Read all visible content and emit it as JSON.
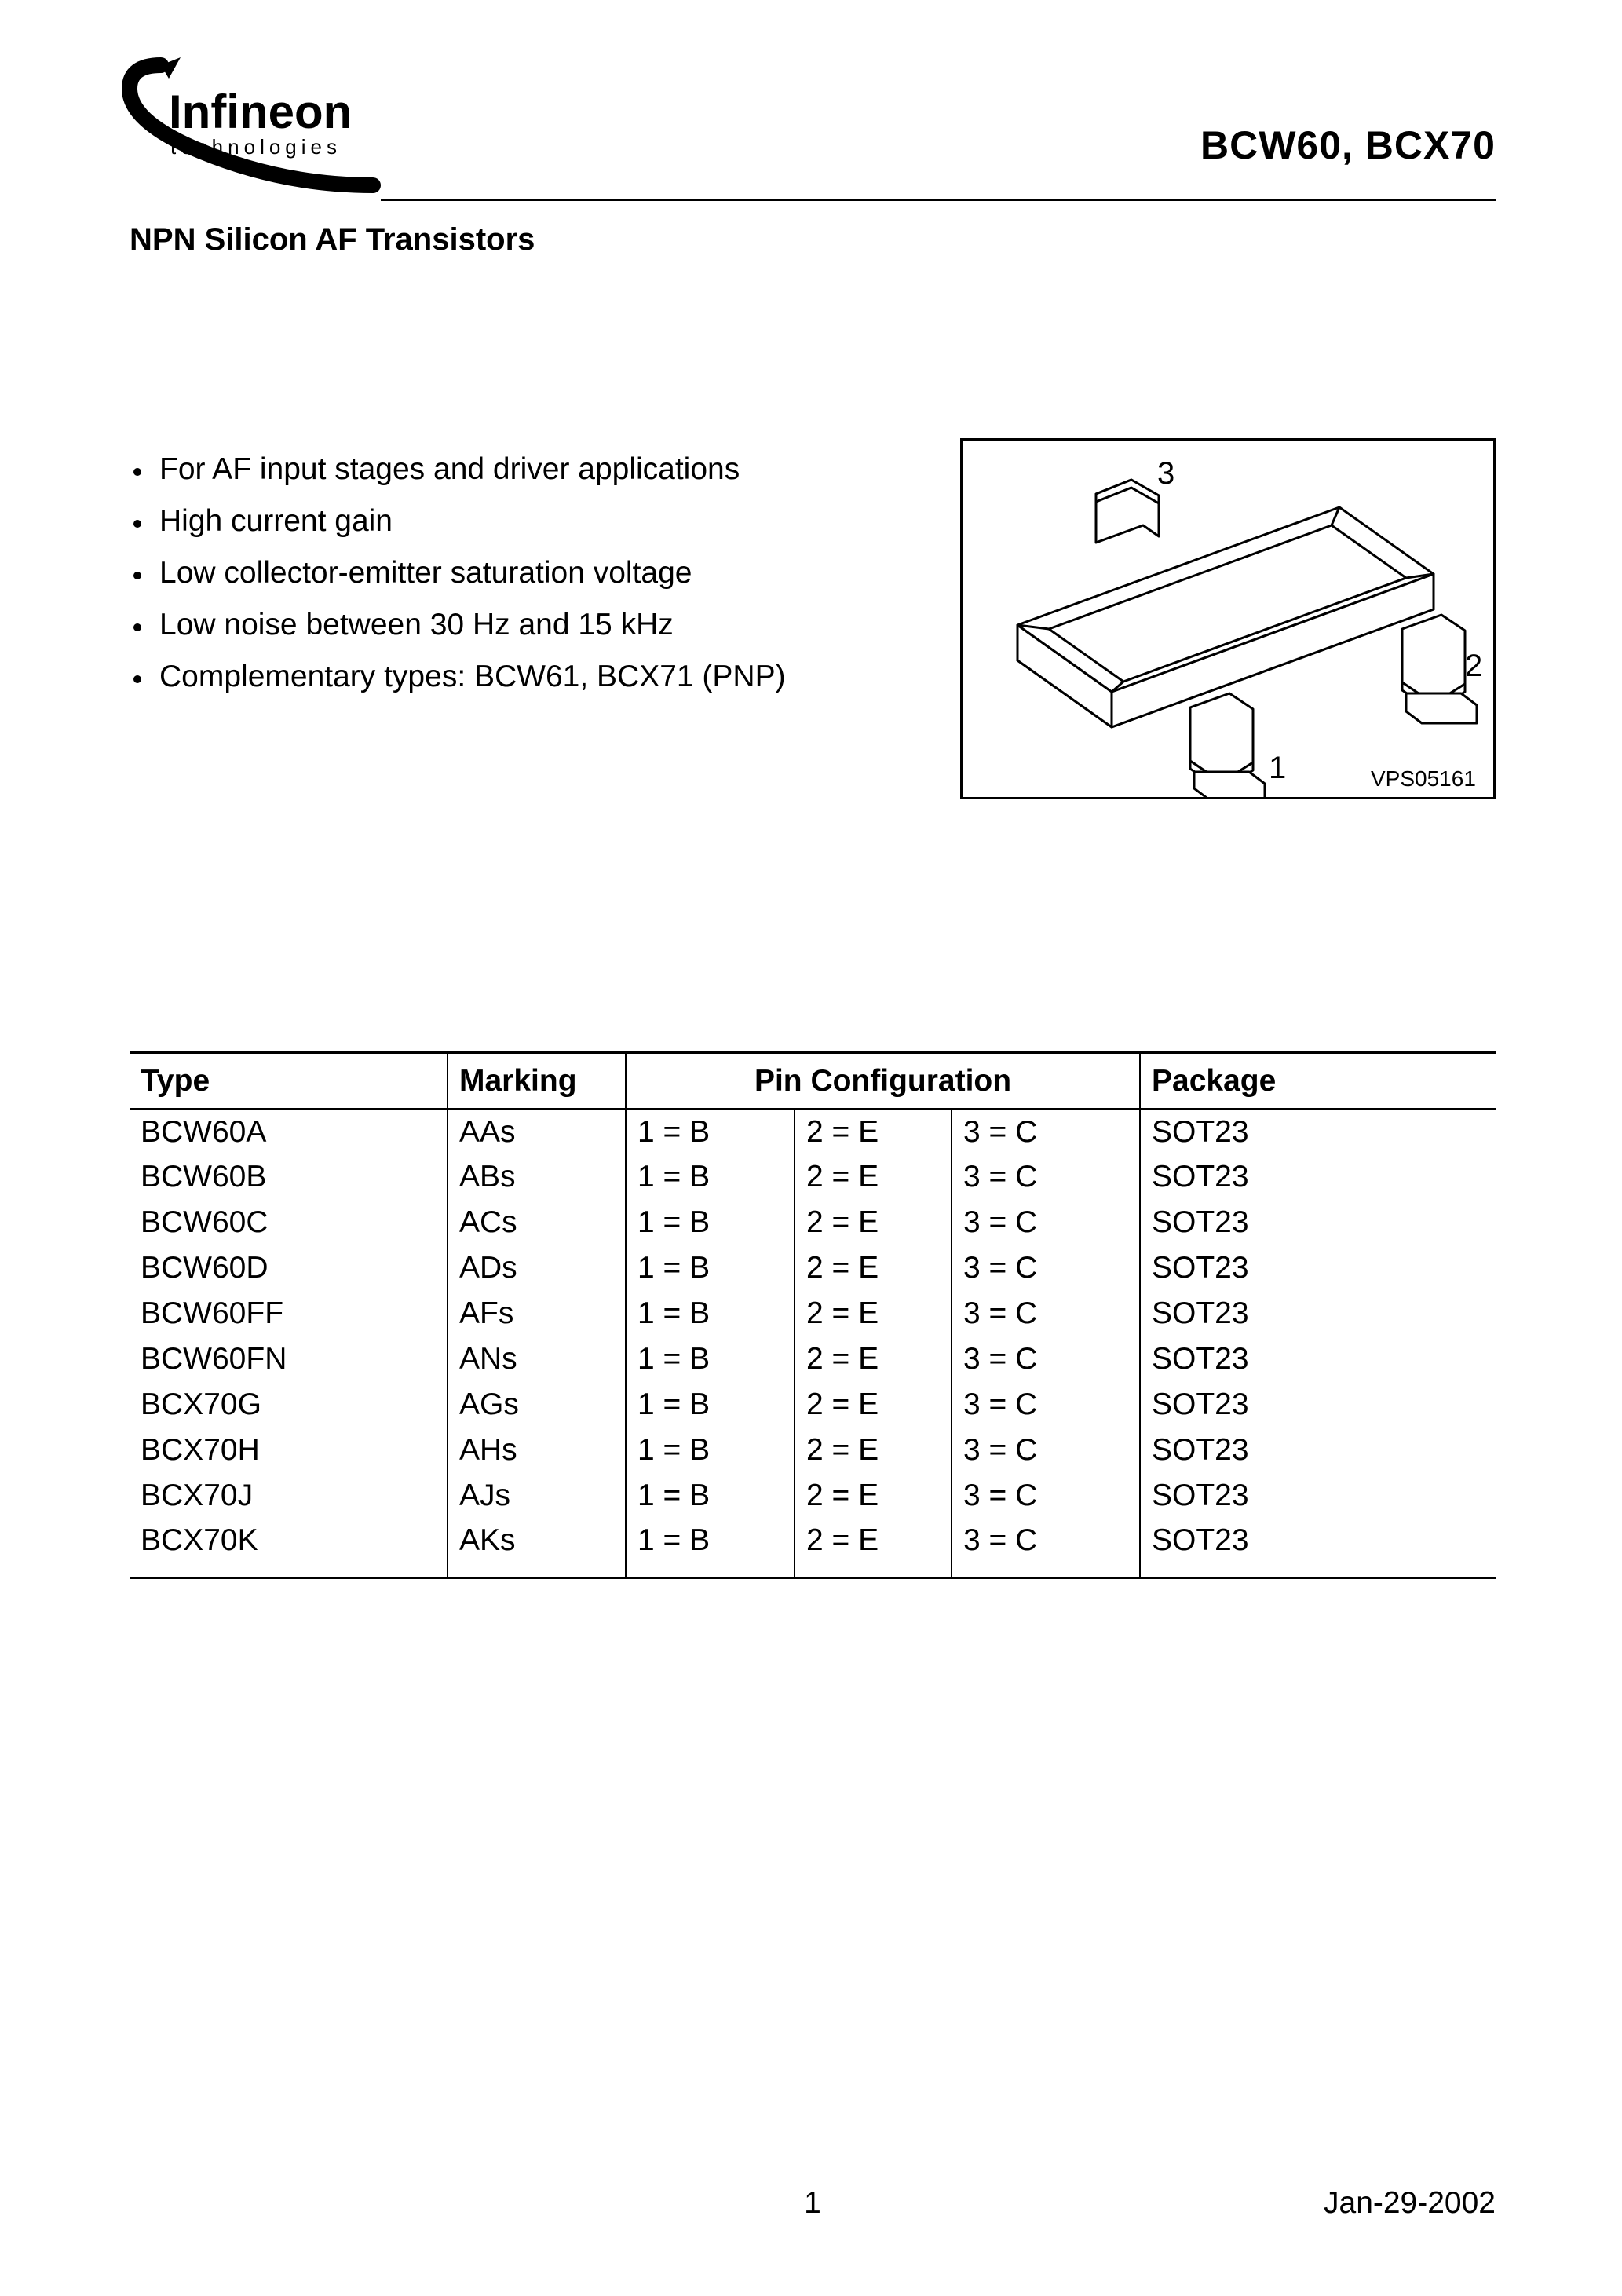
{
  "header": {
    "logo_main": "Infineon",
    "logo_sub": "technologies",
    "part_title": "BCW60, BCX70",
    "subtitle": "NPN Silicon AF Transistors"
  },
  "features": [
    "For AF input stages and driver applications",
    "High current gain",
    "Low collector-emitter saturation voltage",
    "Low noise between 30 Hz and 15 kHz",
    "Complementary types: BCW61, BCX71 (PNP)"
  ],
  "diagram": {
    "pin_labels": {
      "1": "1",
      "2": "2",
      "3": "3"
    },
    "id_label": "VPS05161",
    "stroke_color": "#000000",
    "stroke_width": 3,
    "fill_color": "#ffffff"
  },
  "table": {
    "columns": {
      "type": "Type",
      "marking": "Marking",
      "pin_config": "Pin Configuration",
      "package": "Package"
    },
    "col_widths": {
      "type": 405,
      "marking": 227,
      "pin1": 215,
      "pin2": 200,
      "pin3": 240,
      "package": 250
    },
    "rows": [
      {
        "type": "BCW60A",
        "marking": "AAs",
        "pin1": "1 = B",
        "pin2": "2 = E",
        "pin3": "3 = C",
        "package": "SOT23"
      },
      {
        "type": "BCW60B",
        "marking": "ABs",
        "pin1": "1 = B",
        "pin2": "2 = E",
        "pin3": "3 = C",
        "package": "SOT23"
      },
      {
        "type": "BCW60C",
        "marking": "ACs",
        "pin1": "1 = B",
        "pin2": "2 = E",
        "pin3": "3 = C",
        "package": "SOT23"
      },
      {
        "type": "BCW60D",
        "marking": "ADs",
        "pin1": "1 = B",
        "pin2": "2 = E",
        "pin3": "3 = C",
        "package": "SOT23"
      },
      {
        "type": "BCW60FF",
        "marking": "AFs",
        "pin1": "1 = B",
        "pin2": "2 = E",
        "pin3": "3 = C",
        "package": "SOT23"
      },
      {
        "type": "BCW60FN",
        "marking": "ANs",
        "pin1": "1 = B",
        "pin2": "2 = E",
        "pin3": "3 = C",
        "package": "SOT23"
      },
      {
        "type": "BCX70G",
        "marking": "AGs",
        "pin1": "1 = B",
        "pin2": "2 = E",
        "pin3": "3 = C",
        "package": "SOT23"
      },
      {
        "type": "BCX70H",
        "marking": "AHs",
        "pin1": "1 = B",
        "pin2": "2 = E",
        "pin3": "3 = C",
        "package": "SOT23"
      },
      {
        "type": "BCX70J",
        "marking": "AJs",
        "pin1": "1 = B",
        "pin2": "2 = E",
        "pin3": "3 = C",
        "package": "SOT23"
      },
      {
        "type": "BCX70K",
        "marking": "AKs",
        "pin1": "1 = B",
        "pin2": "2 = E",
        "pin3": "3 = C",
        "package": "SOT23"
      }
    ]
  },
  "footer": {
    "page_number": "1",
    "date": "Jan-29-2002"
  },
  "colors": {
    "text": "#000000",
    "background": "#ffffff",
    "rule": "#000000"
  }
}
